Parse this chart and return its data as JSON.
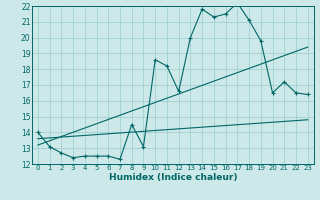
{
  "title": "",
  "xlabel": "Humidex (Indice chaleur)",
  "bg_color": "#cce8e8",
  "grid_color": "#99cccc",
  "line_color": "#006666",
  "xlim": [
    -0.5,
    23.5
  ],
  "ylim": [
    12,
    22
  ],
  "xticks": [
    0,
    1,
    2,
    3,
    4,
    5,
    6,
    7,
    8,
    9,
    10,
    11,
    12,
    13,
    14,
    15,
    16,
    17,
    18,
    19,
    20,
    21,
    22,
    23
  ],
  "yticks": [
    12,
    13,
    14,
    15,
    16,
    17,
    18,
    19,
    20,
    21,
    22
  ],
  "line1_x": [
    0,
    1,
    2,
    3,
    4,
    5,
    6,
    7,
    8,
    9,
    10,
    11,
    12,
    13,
    14,
    15,
    16,
    17,
    18,
    19,
    20,
    21,
    22,
    23
  ],
  "line1_y": [
    14.0,
    13.1,
    12.7,
    12.4,
    12.5,
    12.5,
    12.5,
    12.3,
    14.5,
    13.1,
    18.6,
    18.2,
    16.6,
    20.0,
    21.8,
    21.3,
    21.5,
    22.2,
    21.1,
    19.8,
    16.5,
    17.2,
    16.5,
    16.4
  ],
  "line2_x": [
    0,
    23
  ],
  "line2_y": [
    13.2,
    19.4
  ],
  "line3_x": [
    0,
    23
  ],
  "line3_y": [
    13.6,
    14.8
  ]
}
